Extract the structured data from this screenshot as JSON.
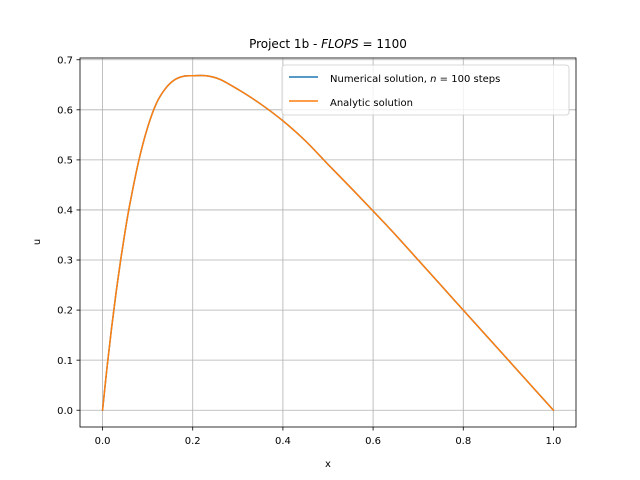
{
  "chart_data": {
    "type": "line",
    "title": "Project 1b - FLOPS = 1100",
    "title_parts": {
      "prefix": "Project 1b - ",
      "math": "FLOPS",
      "suffix": " = 1100"
    },
    "xlabel": "x",
    "ylabel": "u",
    "xlim": [
      -0.05,
      1.05
    ],
    "ylim": [
      -0.0335,
      0.7035
    ],
    "xticks": [
      0.0,
      0.2,
      0.4,
      0.6,
      0.8,
      1.0
    ],
    "yticks": [
      0.0,
      0.1,
      0.2,
      0.3,
      0.4,
      0.5,
      0.6,
      0.7
    ],
    "xtick_labels": [
      "0.0",
      "0.2",
      "0.4",
      "0.6",
      "0.8",
      "1.0"
    ],
    "ytick_labels": [
      "0.0",
      "0.1",
      "0.2",
      "0.3",
      "0.4",
      "0.5",
      "0.6",
      "0.7"
    ],
    "grid": true,
    "legend_position": "top-right",
    "legend": [
      {
        "text_prefix": "Numerical solution, ",
        "math": "n",
        "text_suffix": " = 100 steps",
        "color": "#1f77b4"
      },
      {
        "text_prefix": "Analytic solution",
        "math": "",
        "text_suffix": "",
        "color": "#ff7f0e"
      }
    ],
    "series": [
      {
        "name": "Numerical solution, n = 100 steps",
        "color": "#1f77b4",
        "x": [
          0.0,
          0.01,
          0.02,
          0.03,
          0.04,
          0.05,
          0.06,
          0.08,
          0.1,
          0.12,
          0.14,
          0.16,
          0.18,
          0.2,
          0.23,
          0.26,
          0.3,
          0.35,
          0.4,
          0.45,
          0.5,
          0.55,
          0.6,
          0.65,
          0.7,
          0.75,
          0.8,
          0.85,
          0.9,
          0.95,
          1.0
        ],
        "y": [
          0.0,
          0.086,
          0.164,
          0.235,
          0.299,
          0.357,
          0.409,
          0.497,
          0.565,
          0.614,
          0.643,
          0.66,
          0.667,
          0.668,
          0.668,
          0.661,
          0.641,
          0.612,
          0.578,
          0.538,
          0.491,
          0.445,
          0.398,
          0.35,
          0.3,
          0.25,
          0.2,
          0.15,
          0.1,
          0.05,
          0.0
        ]
      },
      {
        "name": "Analytic solution",
        "color": "#ff7f0e",
        "x": [
          0.0,
          0.01,
          0.02,
          0.03,
          0.04,
          0.05,
          0.06,
          0.08,
          0.1,
          0.12,
          0.14,
          0.16,
          0.18,
          0.2,
          0.23,
          0.26,
          0.3,
          0.35,
          0.4,
          0.45,
          0.5,
          0.55,
          0.6,
          0.65,
          0.7,
          0.75,
          0.8,
          0.85,
          0.9,
          0.95,
          1.0
        ],
        "y": [
          0.0,
          0.086,
          0.164,
          0.235,
          0.299,
          0.357,
          0.409,
          0.497,
          0.565,
          0.614,
          0.643,
          0.66,
          0.667,
          0.668,
          0.668,
          0.661,
          0.641,
          0.612,
          0.578,
          0.538,
          0.491,
          0.445,
          0.398,
          0.35,
          0.3,
          0.25,
          0.2,
          0.15,
          0.1,
          0.05,
          0.0
        ]
      }
    ]
  }
}
